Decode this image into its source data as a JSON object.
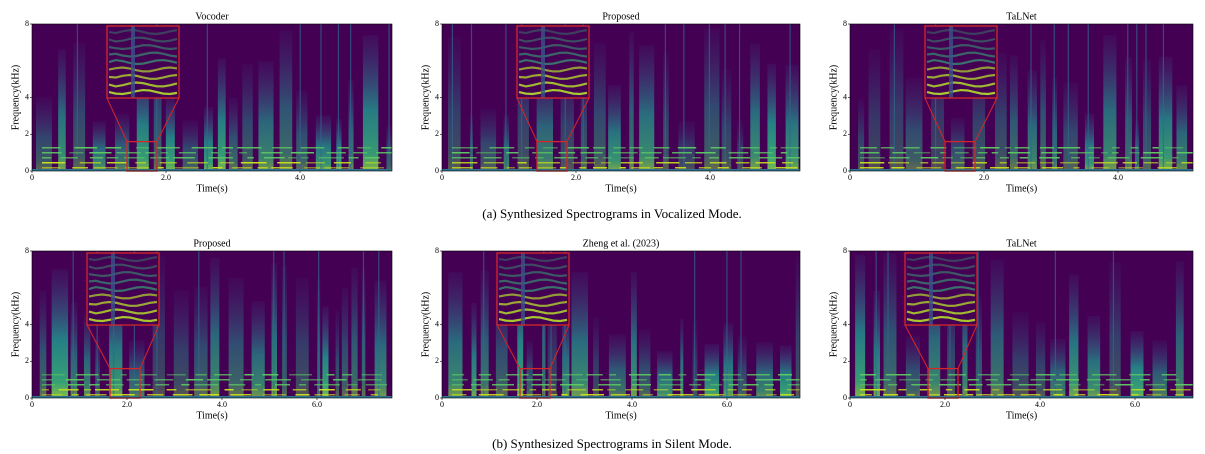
{
  "rows": [
    {
      "caption": "(a) Synthesized Spectrograms in Vocalized Mode.",
      "panels": [
        {
          "title": "Vocoder",
          "ylabel": "Frequency(kHz)",
          "xlabel": "Time(s)",
          "yticks": [
            "0",
            "2",
            "4",
            "8"
          ],
          "xticks": [
            "0",
            "2.0",
            "4.0"
          ]
        },
        {
          "title": "Proposed",
          "ylabel": "Frequency(kHz)",
          "xlabel": "Time(s)",
          "yticks": [
            "0",
            "2",
            "4",
            "8"
          ],
          "xticks": [
            "0",
            "2.0",
            "4.0"
          ]
        },
        {
          "title": "TaLNet",
          "ylabel": "Frequency(kHz)",
          "xlabel": "Time(s)",
          "yticks": [
            "0",
            "2",
            "4",
            "8"
          ],
          "xticks": [
            "0",
            "2.0",
            "4.0"
          ]
        }
      ]
    },
    {
      "caption": "(b) Synthesized Spectrograms in Silent Mode.",
      "panels": [
        {
          "title": "Proposed",
          "ylabel": "Frequency(kHz)",
          "xlabel": "Time(s)",
          "yticks": [
            "0",
            "2",
            "4",
            "8"
          ],
          "xticks": [
            "0",
            "2.0",
            "4.0",
            "6.0"
          ]
        },
        {
          "title": "Zheng et al. (2023)",
          "ylabel": "Frequency(kHz)",
          "xlabel": "Time(s)",
          "yticks": [
            "0",
            "2",
            "4",
            "8"
          ],
          "xticks": [
            "0",
            "2.0",
            "4.0",
            "6.0"
          ]
        },
        {
          "title": "TaLNet",
          "ylabel": "Frequency(kHz)",
          "xlabel": "Time(s)",
          "yticks": [
            "0",
            "2",
            "4",
            "8"
          ],
          "xticks": [
            "0",
            "2.0",
            "4.0",
            "6.0"
          ]
        }
      ]
    }
  ]
}
